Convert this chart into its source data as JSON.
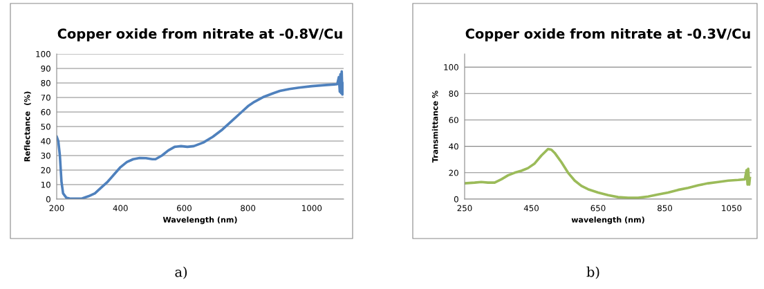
{
  "chart_data": [
    {
      "type": "line",
      "title": "Copper oxide from nitrate at -0.8V/Cu",
      "xlabel": "Wavelength (nm)",
      "ylabel": "Reflectance  (%)",
      "series": [
        {
          "color": "#4f81bd",
          "x": [
            200,
            205,
            210,
            215,
            220,
            230,
            240,
            260,
            280,
            300,
            320,
            340,
            360,
            380,
            400,
            420,
            440,
            460,
            480,
            500,
            510,
            530,
            550,
            570,
            590,
            610,
            630,
            660,
            690,
            720,
            750,
            780,
            800,
            820,
            850,
            880,
            900,
            930,
            960,
            1000,
            1040,
            1070,
            1080,
            1085,
            1088,
            1090,
            1092,
            1094,
            1096,
            1098,
            1100
          ],
          "values": [
            43,
            40,
            30,
            12,
            4,
            1,
            0.5,
            0.3,
            0.5,
            2,
            4,
            8,
            12,
            17,
            22,
            25.5,
            27.5,
            28.3,
            28.2,
            27.5,
            27.5,
            30,
            33.5,
            36,
            36.5,
            36,
            36.5,
            39,
            43,
            48,
            54,
            60,
            64,
            67,
            70.5,
            73,
            74.5,
            75.8,
            76.8,
            77.8,
            78.5,
            79,
            79.2,
            84,
            74,
            86,
            73,
            88,
            72,
            80,
            79
          ]
        }
      ],
      "xlim": [
        200,
        1100
      ],
      "xticks": [
        200,
        400,
        600,
        800,
        1000
      ],
      "ylim": [
        0,
        100
      ],
      "yticks": [
        0,
        10,
        20,
        30,
        40,
        50,
        60,
        70,
        80,
        90,
        100
      ],
      "grid": "y",
      "legend": false,
      "marker": "none",
      "line_style": "solid",
      "annotations": [
        "a)"
      ]
    },
    {
      "type": "line",
      "title": "Copper oxide from nitrate at -0.3V/Cu",
      "xlabel": "wavelength (nm)",
      "ylabel": "Transmittance %",
      "series": [
        {
          "color": "#9bbb59",
          "x": [
            250,
            280,
            300,
            320,
            340,
            360,
            380,
            400,
            420,
            440,
            460,
            480,
            500,
            510,
            520,
            540,
            560,
            580,
            600,
            620,
            650,
            680,
            710,
            740,
            770,
            800,
            830,
            860,
            890,
            920,
            950,
            980,
            1010,
            1040,
            1070,
            1090,
            1095,
            1098,
            1100,
            1103,
            1105
          ],
          "values": [
            12,
            12.5,
            13,
            12.5,
            12.5,
            15,
            18,
            20,
            21.5,
            23.5,
            27,
            33,
            38,
            37.5,
            35,
            28,
            20,
            14,
            10,
            7.5,
            5,
            3,
            1.5,
            1,
            1,
            2,
            3.5,
            5,
            7,
            8.5,
            10.5,
            12,
            13,
            14,
            14.5,
            15,
            22,
            11,
            23,
            11,
            16
          ]
        }
      ],
      "xlim": [
        250,
        1110
      ],
      "xticks": [
        250,
        450,
        650,
        850,
        1050
      ],
      "ylim": [
        0,
        110
      ],
      "yticks": [
        0,
        20,
        40,
        60,
        80,
        100
      ],
      "grid": "y",
      "legend": false,
      "marker": "none",
      "line_style": "solid",
      "annotations": [
        "b)"
      ]
    }
  ]
}
